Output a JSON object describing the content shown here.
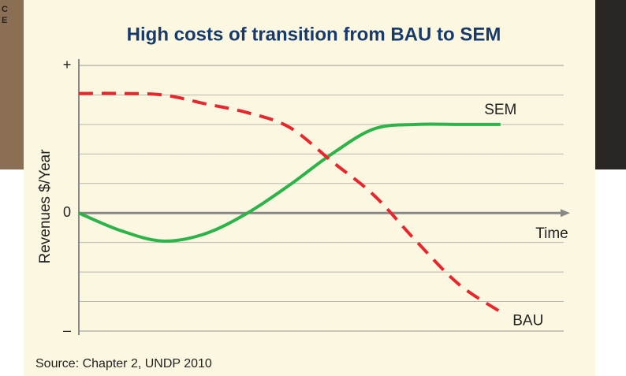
{
  "background": {
    "texts": [
      "C",
      "E"
    ]
  },
  "chart_data": {
    "type": "line",
    "title": "High costs of transition from BAU to SEM",
    "y_label": "Revenues $/Year",
    "x_label": "Time",
    "source": "Source:  Chapter 2, UNDP 2010",
    "x": [
      0,
      1,
      2,
      3,
      4,
      5,
      6,
      7,
      8,
      9,
      10
    ],
    "xlim": [
      0,
      11.5
    ],
    "ylim": [
      -4,
      5
    ],
    "yticks": [
      {
        "value": 5,
        "label": "+"
      },
      0,
      {
        "value": -4,
        "label": "–"
      }
    ],
    "grid": true,
    "series": [
      {
        "name": "SEM",
        "color": "#2db34a",
        "dash": false,
        "values": [
          0,
          -0.6,
          -0.95,
          -0.7,
          0,
          0.95,
          2.0,
          2.85,
          3.0,
          3.0,
          3.0
        ]
      },
      {
        "name": "BAU",
        "color": "#e8262d",
        "dash": true,
        "values": [
          4.05,
          4.05,
          4.0,
          3.7,
          3.4,
          2.9,
          1.75,
          0.6,
          -0.95,
          -2.4,
          -3.35
        ]
      }
    ]
  }
}
